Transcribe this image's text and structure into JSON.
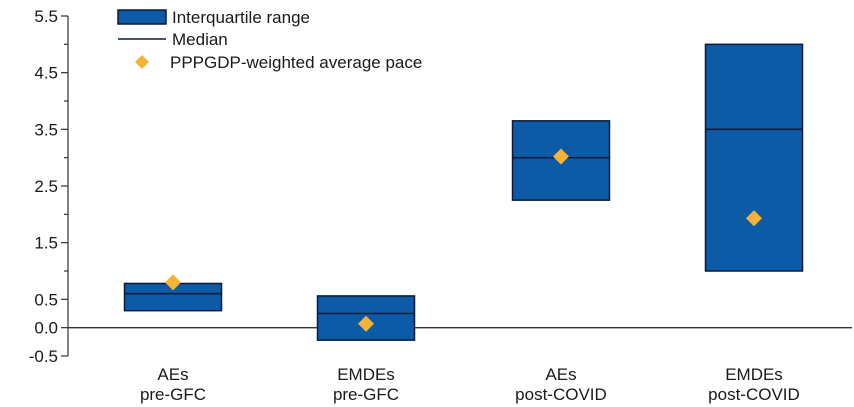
{
  "chart_data": {
    "type": "box",
    "title": "",
    "xlabel": "",
    "ylabel": "",
    "ylim": [
      -0.5,
      5.5
    ],
    "y_ticks_labeled": [
      5.5,
      4.5,
      3.5,
      2.5,
      1.5,
      0.5,
      0.0,
      -0.5
    ],
    "y_tick_labels": [
      "5.5",
      "4.5",
      "3.5",
      "2.5",
      "1.5",
      "0.5",
      "0.0",
      "-0.5"
    ],
    "y_ticks_minor": [
      5.0,
      4.0,
      3.0,
      2.0,
      1.0
    ],
    "categories": [
      [
        "AEs",
        "pre-GFC"
      ],
      [
        "EMDEs",
        "pre-GFC"
      ],
      [
        "AEs",
        "post-COVID"
      ],
      [
        "EMDEs",
        "post-COVID"
      ]
    ],
    "series": [
      {
        "name": "Interquartile range",
        "values": [
          [
            0.3,
            0.78
          ],
          [
            -0.22,
            0.56
          ],
          [
            2.25,
            3.65
          ],
          [
            1.0,
            5.0
          ]
        ]
      },
      {
        "name": "Median",
        "values": [
          0.6,
          0.25,
          3.0,
          3.5
        ]
      },
      {
        "name": "PPPGDP-weighted average pace",
        "values": [
          0.8,
          0.07,
          3.02,
          1.93
        ]
      }
    ],
    "colors": {
      "box_fill": "#0d5aa7",
      "box_stroke": "#0a1a3a",
      "median": "#0a1a3a",
      "marker": "#f5b335",
      "axis": "#333333"
    },
    "legend": {
      "position": "top-left",
      "items": [
        {
          "label": "Interquartile range",
          "kind": "box"
        },
        {
          "label": "Median",
          "kind": "line"
        },
        {
          "label": "PPPGDP-weighted average pace",
          "kind": "diamond"
        }
      ]
    }
  }
}
